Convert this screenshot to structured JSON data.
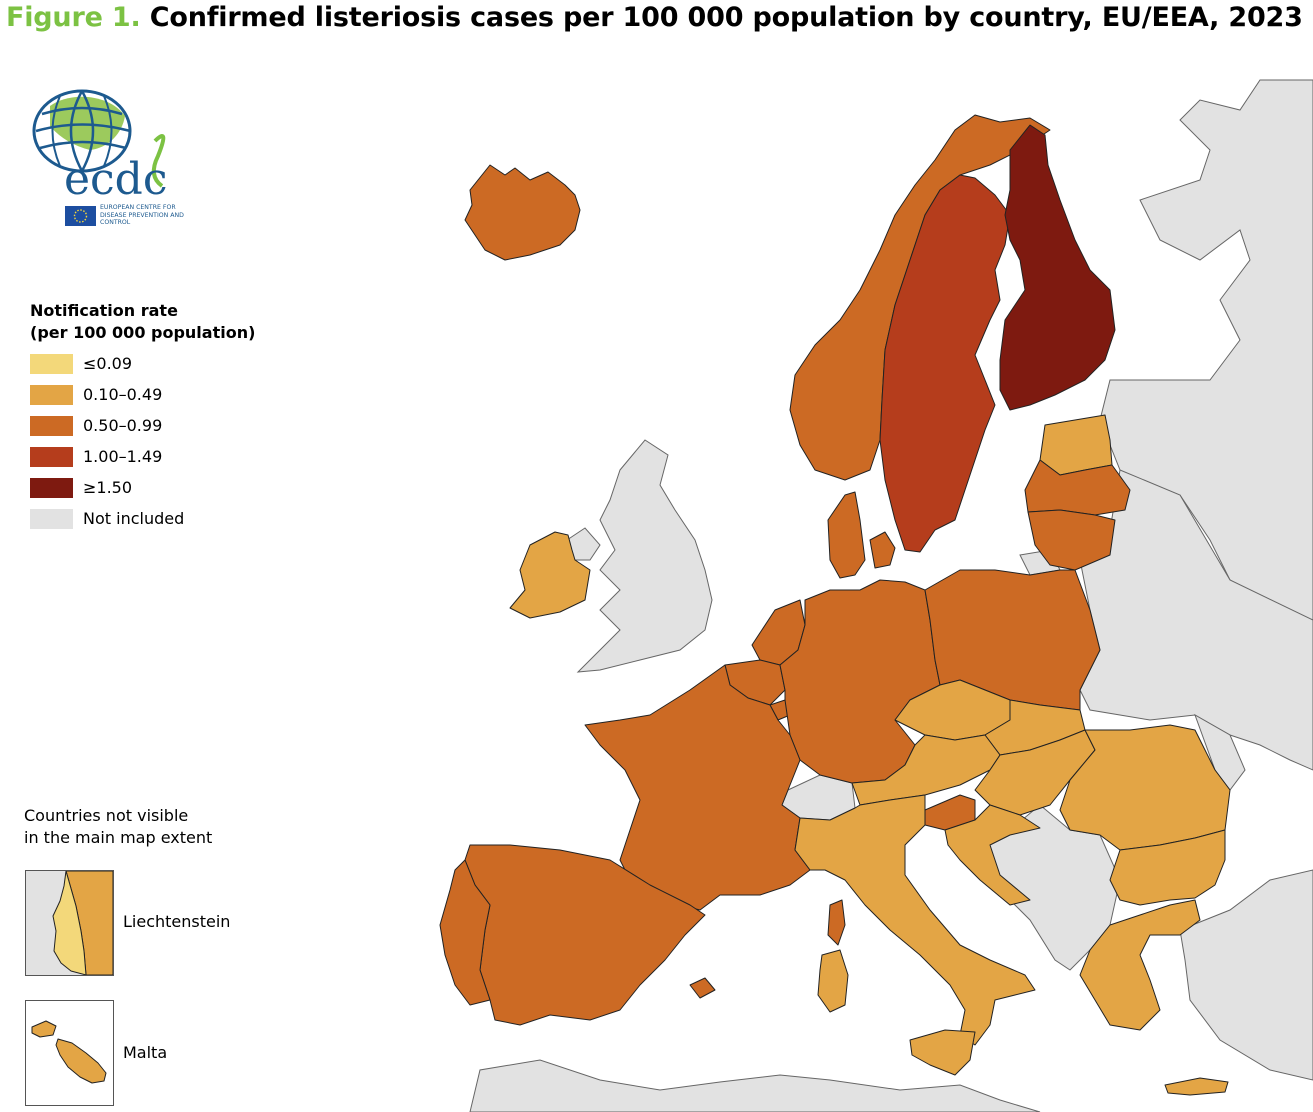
{
  "figure": {
    "label": "Figure 1.",
    "title": "Confirmed listeriosis cases per 100 000 population by country, EU/EEA, 2023"
  },
  "logo": {
    "acronym": "ecdc",
    "org_name": "EUROPEAN CENTRE FOR DISEASE PREVENTION AND CONTROL"
  },
  "legend": {
    "heading_line1": "Notification rate",
    "heading_line2": "(per 100 000 population)",
    "classes": [
      {
        "label": "≤0.09",
        "color": "#f3d87a"
      },
      {
        "label": "0.10–0.49",
        "color": "#e3a545"
      },
      {
        "label": "0.50–0.99",
        "color": "#cc6a24"
      },
      {
        "label": "1.00–1.49",
        "color": "#b53d1c"
      },
      {
        "label": "≥1.50",
        "color": "#7e1a10"
      },
      {
        "label": "Not included",
        "color": "#e2e2e2"
      }
    ]
  },
  "not_visible": {
    "heading_line1": "Countries not visible",
    "heading_line2": "in the main map extent",
    "liechtenstein": "Liechtenstein",
    "malta": "Malta"
  },
  "countries": [
    {
      "name": "Iceland",
      "class": "0.50–0.99"
    },
    {
      "name": "Norway",
      "class": "0.50–0.99"
    },
    {
      "name": "Sweden",
      "class": "1.00–1.49"
    },
    {
      "name": "Finland",
      "class": "≥1.50"
    },
    {
      "name": "Estonia",
      "class": "0.10–0.49"
    },
    {
      "name": "Latvia",
      "class": "0.50–0.99"
    },
    {
      "name": "Lithuania",
      "class": "0.50–0.99"
    },
    {
      "name": "Denmark",
      "class": "0.50–0.99"
    },
    {
      "name": "Ireland",
      "class": "0.10–0.49"
    },
    {
      "name": "Netherlands",
      "class": "0.50–0.99"
    },
    {
      "name": "Belgium",
      "class": "0.50–0.99"
    },
    {
      "name": "Luxembourg",
      "class": "0.50–0.99"
    },
    {
      "name": "Germany",
      "class": "0.50–0.99"
    },
    {
      "name": "Poland",
      "class": "0.50–0.99"
    },
    {
      "name": "France",
      "class": "0.50–0.99"
    },
    {
      "name": "Spain",
      "class": "0.50–0.99"
    },
    {
      "name": "Portugal",
      "class": "0.50–0.99"
    },
    {
      "name": "Czechia",
      "class": "0.10–0.49"
    },
    {
      "name": "Slovakia",
      "class": "0.10–0.49"
    },
    {
      "name": "Austria",
      "class": "0.10–0.49"
    },
    {
      "name": "Hungary",
      "class": "0.10–0.49"
    },
    {
      "name": "Slovenia",
      "class": "0.50–0.99"
    },
    {
      "name": "Croatia",
      "class": "0.10–0.49"
    },
    {
      "name": "Romania",
      "class": "0.10–0.49"
    },
    {
      "name": "Bulgaria",
      "class": "0.10–0.49"
    },
    {
      "name": "Italy",
      "class": "0.10–0.49"
    },
    {
      "name": "Greece",
      "class": "0.10–0.49"
    },
    {
      "name": "Cyprus",
      "class": "0.10–0.49"
    },
    {
      "name": "Malta",
      "class": "0.10–0.49"
    },
    {
      "name": "Liechtenstein",
      "class": "≤0.09"
    }
  ]
}
